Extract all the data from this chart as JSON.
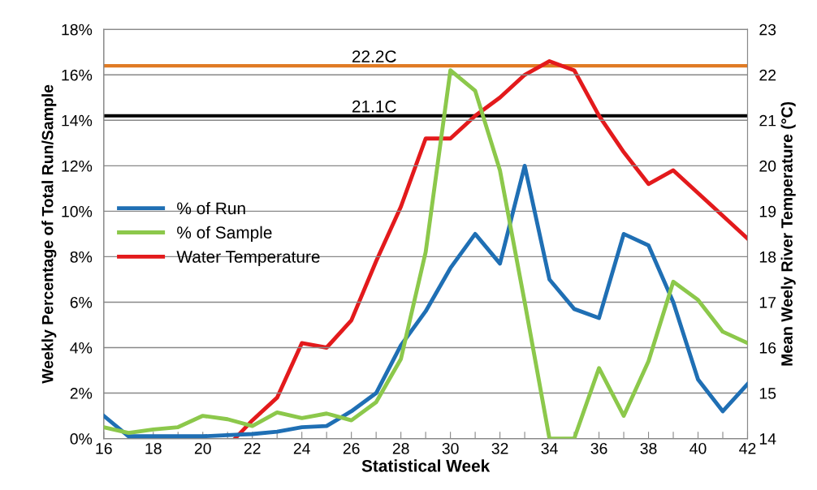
{
  "chart_data": {
    "type": "line",
    "xlabel": "Statistical Week",
    "ylabel": "Weekly Percentage of Total Run/Sample",
    "y2label": "Mean Weely River Temperature (°C)",
    "x": [
      16,
      17,
      18,
      19,
      20,
      21,
      22,
      23,
      24,
      25,
      26,
      27,
      28,
      29,
      30,
      31,
      32,
      33,
      34,
      35,
      36,
      37,
      38,
      39,
      40,
      41,
      42
    ],
    "series": [
      {
        "name": "% of Run",
        "color": "#1f6fb4",
        "values": [
          1.0,
          0.1,
          0.1,
          0.1,
          0.1,
          0.15,
          0.2,
          0.3,
          0.5,
          0.55,
          1.2,
          2.0,
          4.1,
          5.6,
          7.5,
          9.0,
          7.7,
          12.0,
          7.0,
          5.7,
          5.3,
          9.0,
          8.5,
          6.0,
          2.6,
          1.2,
          2.4
        ]
      },
      {
        "name": "% of Sample",
        "color": "#8cc84b",
        "values": [
          0.5,
          0.25,
          0.4,
          0.5,
          1.0,
          0.85,
          0.55,
          1.15,
          0.9,
          1.1,
          0.8,
          1.6,
          3.5,
          8.2,
          16.2,
          15.3,
          11.8,
          6.0,
          0,
          0,
          3.1,
          1.0,
          3.4,
          6.9,
          6.1,
          4.7,
          4.2
        ]
      },
      {
        "name": "Water Temperature",
        "color": "#e31a1c",
        "axis": "y2",
        "x": [
          21.3,
          22,
          23,
          24,
          25,
          26,
          27,
          28,
          29,
          30,
          31,
          32,
          33,
          34,
          35,
          36,
          37,
          38,
          39,
          40,
          41,
          42
        ],
        "values": [
          14,
          14.4,
          14.9,
          16.1,
          16.0,
          16.6,
          17.9,
          19.1,
          20.6,
          20.6,
          21.1,
          21.5,
          22.0,
          22.3,
          22.1,
          21.1,
          20.3,
          19.6,
          19.9,
          19.4,
          18.9,
          18.4
        ]
      }
    ],
    "xlim": [
      16,
      42
    ],
    "xticks": [
      16,
      {
        "value": 17,
        "label": null
      },
      18,
      {
        "value": 19,
        "label": null
      },
      20,
      {
        "value": 21,
        "label": null
      },
      22,
      {
        "value": 23,
        "label": null
      },
      24,
      {
        "value": 25,
        "label": null
      },
      26,
      {
        "value": 27,
        "label": null
      },
      28,
      {
        "value": 29,
        "label": null
      },
      30,
      {
        "value": 31,
        "label": null
      },
      32,
      {
        "value": 33,
        "label": null
      },
      34,
      {
        "value": 35,
        "label": null
      },
      36,
      {
        "value": 37,
        "label": null
      },
      38,
      {
        "value": 39,
        "label": null
      },
      40,
      {
        "value": 41,
        "label": null
      },
      42
    ],
    "ylim": [
      0,
      18
    ],
    "yticks": [
      {
        "value": 0,
        "label": "0%"
      },
      {
        "value": 2,
        "label": "2%"
      },
      {
        "value": 4,
        "label": "4%"
      },
      {
        "value": 6,
        "label": "6%"
      },
      {
        "value": 8,
        "label": "8%"
      },
      {
        "value": 10,
        "label": "10%"
      },
      {
        "value": 12,
        "label": "12%"
      },
      {
        "value": 14,
        "label": "14%"
      },
      {
        "value": 16,
        "label": "16%"
      },
      {
        "value": 18,
        "label": "18%"
      }
    ],
    "y2lim": [
      14,
      23
    ],
    "y2ticks": [
      14,
      15,
      16,
      17,
      18,
      19,
      20,
      21,
      22,
      23
    ],
    "ref_lines": [
      {
        "axis": "y2",
        "value": 22.2,
        "label": "22.2C",
        "color": "#e07b24"
      },
      {
        "axis": "y2",
        "value": 21.1,
        "label": "21.1C",
        "color": "#000000"
      }
    ],
    "grid": "y",
    "legend": "left",
    "marker": "none",
    "line_style": "solid"
  }
}
